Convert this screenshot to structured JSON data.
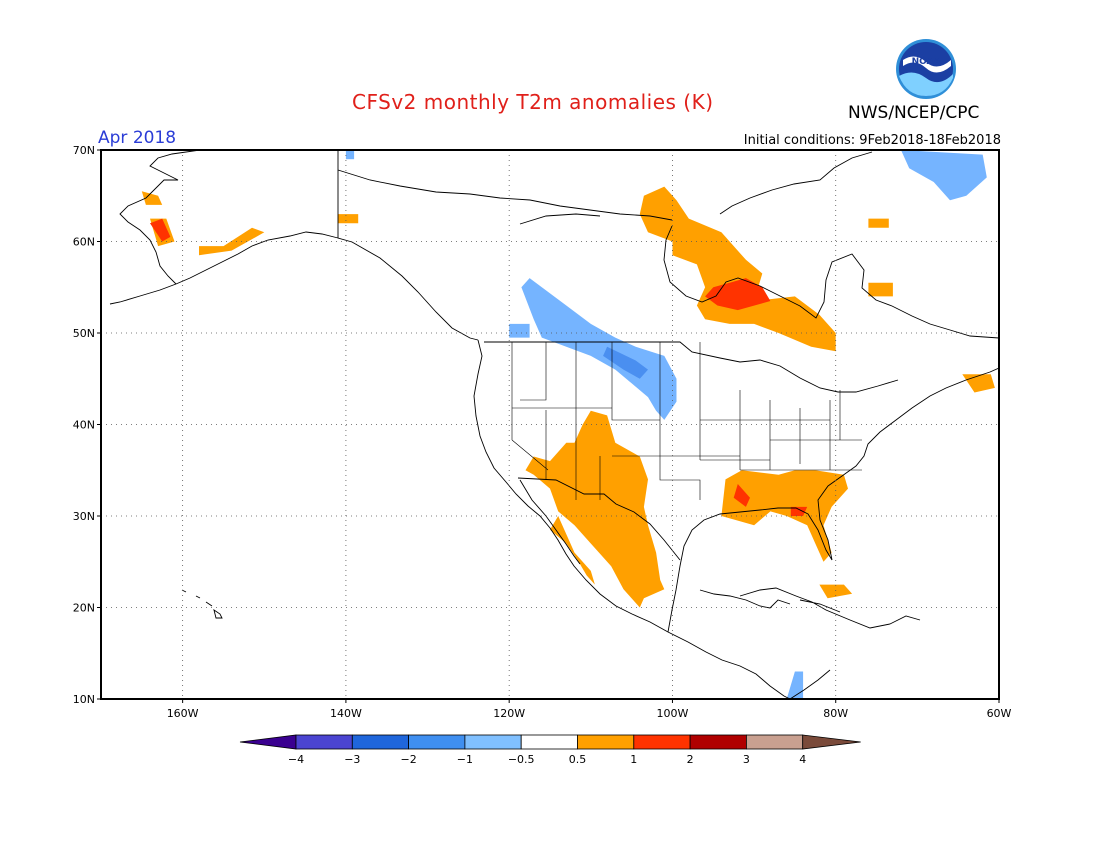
{
  "header": {
    "title": "CFSv2 monthly T2m anomalies (K)",
    "agency": "NWS/NCEP/CPC",
    "month": "Apr 2018",
    "initial_conditions": "Initial conditions: 9Feb2018-18Feb2018",
    "logo_text": "NOAA"
  },
  "map": {
    "projection": "equirectangular",
    "lon_range": [
      -170,
      -60
    ],
    "lat_range": [
      10,
      70
    ],
    "lat_ticks": [
      {
        "lat": 70,
        "label": "70N"
      },
      {
        "lat": 60,
        "label": "60N"
      },
      {
        "lat": 50,
        "label": "50N"
      },
      {
        "lat": 40,
        "label": "40N"
      },
      {
        "lat": 30,
        "label": "30N"
      },
      {
        "lat": 20,
        "label": "20N"
      },
      {
        "lat": 10,
        "label": "10N"
      }
    ],
    "lon_ticks": [
      {
        "lon": -160,
        "label": "160W"
      },
      {
        "lon": -140,
        "label": "140W"
      },
      {
        "lon": -120,
        "label": "120W"
      },
      {
        "lon": -100,
        "label": "100W"
      },
      {
        "lon": -80,
        "label": "80W"
      },
      {
        "lon": -60,
        "label": "60W"
      }
    ],
    "grid": "dotted",
    "colors": {
      "warm1": "#ffa000",
      "warm2": "#ff3300",
      "cool1": "#75b4ff",
      "cool2": "#4a8ff0",
      "land_border": "#000000"
    },
    "anomaly_regions": [
      {
        "class": "warm1",
        "lonlat": [
          [
            -90,
            53.5
          ],
          [
            -85,
            54
          ],
          [
            -82,
            52
          ],
          [
            -80,
            50
          ],
          [
            -80,
            48
          ],
          [
            -83,
            48.5
          ],
          [
            -87,
            50
          ],
          [
            -90,
            51
          ],
          [
            -93,
            51
          ],
          [
            -96,
            51.5
          ],
          [
            -97,
            53
          ],
          [
            -96,
            55
          ],
          [
            -97,
            57.5
          ],
          [
            -100,
            58.5
          ],
          [
            -100,
            60
          ],
          [
            -103,
            61
          ],
          [
            -104,
            63
          ],
          [
            -103.5,
            65
          ],
          [
            -101,
            66
          ],
          [
            -99.5,
            64.5
          ],
          [
            -98,
            62.5
          ],
          [
            -94,
            61
          ],
          [
            -91,
            58
          ],
          [
            -89,
            56.5
          ]
        ]
      },
      {
        "class": "warm2",
        "lonlat": [
          [
            -88,
            53.5
          ],
          [
            -89,
            55
          ],
          [
            -91,
            56
          ],
          [
            -93,
            55.5
          ],
          [
            -95,
            55
          ],
          [
            -96,
            54
          ],
          [
            -94.5,
            53
          ],
          [
            -92,
            52.5
          ]
        ]
      },
      {
        "class": "warm1",
        "lonlat": [
          [
            -110,
            41.5
          ],
          [
            -108,
            41
          ],
          [
            -107,
            38
          ],
          [
            -104,
            36.5
          ],
          [
            -103,
            34
          ],
          [
            -103.5,
            31
          ],
          [
            -103,
            29
          ],
          [
            -102,
            26
          ],
          [
            -101.5,
            23
          ],
          [
            -101,
            22
          ],
          [
            -103.5,
            21
          ],
          [
            -104,
            20
          ],
          [
            -106,
            22
          ],
          [
            -107.5,
            24.5
          ],
          [
            -109,
            26
          ],
          [
            -110,
            27
          ],
          [
            -112,
            29
          ],
          [
            -114,
            30.5
          ],
          [
            -115,
            33
          ],
          [
            -117,
            34.5
          ],
          [
            -118,
            35
          ],
          [
            -117,
            36.5
          ],
          [
            -115,
            36
          ],
          [
            -113,
            38
          ],
          [
            -112,
            38
          ],
          [
            -111,
            40
          ]
        ]
      },
      {
        "class": "warm1",
        "lonlat": [
          [
            -114,
            30
          ],
          [
            -112,
            26
          ],
          [
            -110,
            24
          ],
          [
            -109.5,
            22.5
          ],
          [
            -110.5,
            23.5
          ],
          [
            -111.5,
            25
          ],
          [
            -113,
            27
          ],
          [
            -115,
            28.5
          ]
        ]
      },
      {
        "class": "warm1",
        "lonlat": [
          [
            -82.5,
            35
          ],
          [
            -79,
            34.5
          ],
          [
            -78.5,
            33
          ],
          [
            -80.5,
            31
          ],
          [
            -81.5,
            29
          ],
          [
            -80.5,
            26
          ],
          [
            -81.5,
            25
          ],
          [
            -82.5,
            27
          ],
          [
            -83.5,
            29
          ],
          [
            -86,
            30
          ],
          [
            -88,
            30.5
          ],
          [
            -90,
            29
          ],
          [
            -92,
            29.5
          ],
          [
            -94,
            30
          ],
          [
            -93.5,
            34
          ],
          [
            -91.5,
            35
          ],
          [
            -87,
            34.5
          ],
          [
            -85,
            35
          ]
        ]
      },
      {
        "class": "warm2",
        "lonlat": [
          [
            -92,
            33.5
          ],
          [
            -90.5,
            32
          ],
          [
            -91,
            31
          ],
          [
            -92.5,
            32
          ]
        ]
      },
      {
        "class": "warm2",
        "lonlat": [
          [
            -85.5,
            31
          ],
          [
            -83.5,
            31
          ],
          [
            -84,
            30
          ],
          [
            -85.5,
            30
          ]
        ]
      },
      {
        "class": "warm1",
        "lonlat": [
          [
            -165,
            65.5
          ],
          [
            -163,
            65
          ],
          [
            -162.5,
            64
          ],
          [
            -164.5,
            64
          ]
        ]
      },
      {
        "class": "warm1",
        "lonlat": [
          [
            -164,
            62.5
          ],
          [
            -162,
            62.5
          ],
          [
            -161,
            60
          ],
          [
            -163,
            59.5
          ]
        ]
      },
      {
        "class": "warm2",
        "lonlat": [
          [
            -164,
            62
          ],
          [
            -162.5,
            62.5
          ],
          [
            -161.5,
            60.5
          ],
          [
            -162.5,
            60
          ]
        ]
      },
      {
        "class": "warm1",
        "lonlat": [
          [
            -158,
            58.5
          ],
          [
            -154,
            59
          ],
          [
            -150,
            61
          ],
          [
            -151.5,
            61.5
          ],
          [
            -155,
            59.5
          ],
          [
            -158,
            59.5
          ]
        ]
      },
      {
        "class": "warm1",
        "lonlat": [
          [
            -141,
            63
          ],
          [
            -138.5,
            63
          ],
          [
            -138.5,
            62
          ],
          [
            -141,
            62
          ]
        ]
      },
      {
        "class": "warm1",
        "lonlat": [
          [
            -76,
            55.5
          ],
          [
            -73,
            55.5
          ],
          [
            -73,
            54
          ],
          [
            -76,
            54
          ]
        ]
      },
      {
        "class": "warm1",
        "lonlat": [
          [
            -76,
            62.5
          ],
          [
            -73.5,
            62.5
          ],
          [
            -73.5,
            61.5
          ],
          [
            -76,
            61.5
          ]
        ]
      },
      {
        "class": "warm1",
        "lonlat": [
          [
            -64.5,
            45.5
          ],
          [
            -61,
            45.5
          ],
          [
            -60.5,
            44
          ],
          [
            -63,
            43.5
          ]
        ]
      },
      {
        "class": "warm1",
        "lonlat": [
          [
            -82,
            22.5
          ],
          [
            -79,
            22.5
          ],
          [
            -78,
            21.5
          ],
          [
            -81,
            21
          ]
        ]
      },
      {
        "class": "cool1",
        "lonlat": [
          [
            -113,
            53
          ],
          [
            -110,
            51
          ],
          [
            -107,
            49.5
          ],
          [
            -104.5,
            48.5
          ],
          [
            -101,
            47.5
          ],
          [
            -99.5,
            45
          ],
          [
            -99.5,
            42.5
          ],
          [
            -101,
            40.5
          ],
          [
            -102,
            41.5
          ],
          [
            -103,
            43
          ],
          [
            -105,
            44.5
          ],
          [
            -107,
            46
          ],
          [
            -110,
            47.5
          ],
          [
            -113,
            48.5
          ],
          [
            -116,
            49.5
          ],
          [
            -117,
            51.5
          ],
          [
            -118.5,
            55
          ],
          [
            -117.5,
            56
          ]
        ]
      },
      {
        "class": "cool2",
        "lonlat": [
          [
            -108,
            48.5
          ],
          [
            -104.5,
            47
          ],
          [
            -103,
            46
          ],
          [
            -104,
            45
          ],
          [
            -106,
            46
          ],
          [
            -108.5,
            47.5
          ]
        ]
      },
      {
        "class": "cool1",
        "lonlat": [
          [
            -120,
            51
          ],
          [
            -117.5,
            51
          ],
          [
            -117.5,
            49.5
          ],
          [
            -120,
            49.5
          ]
        ]
      },
      {
        "class": "cool1",
        "lonlat": [
          [
            -72,
            70
          ],
          [
            -62,
            69.5
          ],
          [
            -61.5,
            67
          ],
          [
            -64,
            65
          ],
          [
            -66,
            64.5
          ],
          [
            -68,
            66.5
          ],
          [
            -71,
            68
          ]
        ]
      },
      {
        "class": "cool1",
        "lonlat": [
          [
            -140,
            70
          ],
          [
            -139,
            70
          ],
          [
            -139,
            69
          ],
          [
            -140,
            69
          ]
        ]
      },
      {
        "class": "cool1",
        "lonlat": [
          [
            -85,
            13
          ],
          [
            -84,
            13
          ],
          [
            -84,
            10
          ],
          [
            -86,
            10
          ]
        ]
      }
    ]
  },
  "colorbar": {
    "labels": [
      "−4",
      "−3",
      "−2",
      "−1",
      "−0.5",
      "0.5",
      "1",
      "2",
      "3",
      "4"
    ],
    "colors": [
      "#3a0090",
      "#4b44d1",
      "#1f66db",
      "#3f8ff0",
      "#80c0ff",
      "#ffffff",
      "#ffa000",
      "#ff3300",
      "#b00000",
      "#c9a090",
      "#7a4a3a"
    ]
  }
}
